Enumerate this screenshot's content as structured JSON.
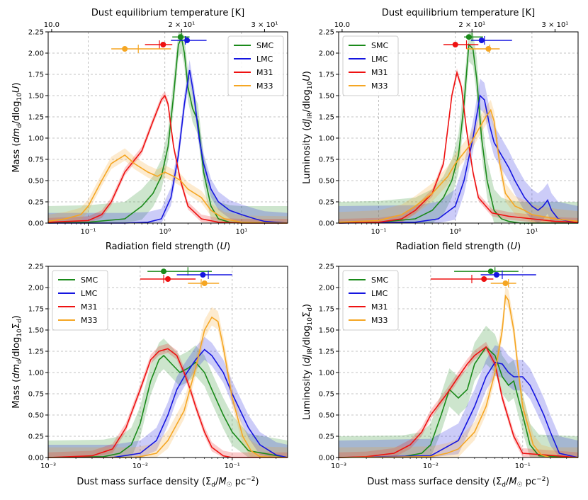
{
  "figure": {
    "colors": {
      "SMC": "#1a8a1a",
      "LMC": "#1515e0",
      "M31": "#ee1111",
      "M33": "#f5a623"
    }
  },
  "chart_data": [
    {
      "id": "panel-u-mass",
      "type": "line",
      "xscale": "log",
      "xlim": [
        0.03,
        40
      ],
      "ylim": [
        0,
        2.25
      ],
      "xlabel": "Radiation field strength (U)",
      "ylabel": "Mass (dm_d/dlog10U)",
      "top_xlabel": "Dust equilibrium temperature [K]",
      "top_ticks": [
        {
          "u": 0.0333,
          "label": "10.0"
        },
        {
          "u": 1.65,
          "label": "2 × 10¹"
        },
        {
          "u": 20.0,
          "label": "3 × 10¹"
        }
      ],
      "x_ticks": [
        {
          "v": 0.1,
          "label": "10⁻¹"
        },
        {
          "v": 1,
          "label": "10⁰"
        },
        {
          "v": 10,
          "label": "10¹"
        }
      ],
      "y_ticks": [
        "0.00",
        "0.25",
        "0.50",
        "0.75",
        "1.00",
        "1.25",
        "1.50",
        "1.75",
        "2.00",
        "2.25"
      ],
      "legend": {
        "loc": "top-right",
        "entries": [
          "SMC",
          "LMC",
          "M31",
          "M33"
        ]
      },
      "series": [
        {
          "name": "SMC",
          "x": [
            0.03,
            0.1,
            0.3,
            0.5,
            0.7,
            0.9,
            1.1,
            1.3,
            1.5,
            1.65,
            1.8,
            2.0,
            2.3,
            2.7,
            3.2,
            4.0,
            5.0,
            7.0,
            10,
            40
          ],
          "y": [
            0,
            0.01,
            0.05,
            0.2,
            0.35,
            0.55,
            0.9,
            1.5,
            2.1,
            2.18,
            2.0,
            1.6,
            1.35,
            1.2,
            0.6,
            0.2,
            0.05,
            0.01,
            0,
            0
          ],
          "band": 0.2,
          "marker": {
            "y": 2.19,
            "point": 1.6,
            "median": 1.65,
            "lo": 1.25,
            "hi": 2.1
          }
        },
        {
          "name": "LMC",
          "x": [
            0.03,
            0.3,
            0.6,
            0.9,
            1.2,
            1.5,
            1.8,
            2.1,
            2.4,
            2.8,
            3.2,
            4.0,
            5.0,
            7.0,
            10,
            15,
            20,
            40
          ],
          "y": [
            0,
            0,
            0.01,
            0.05,
            0.3,
            0.8,
            1.4,
            1.8,
            1.5,
            1.0,
            0.7,
            0.4,
            0.25,
            0.15,
            0.1,
            0.05,
            0.02,
            0
          ],
          "band": 0.12,
          "marker": {
            "y": 2.15,
            "point": 1.95,
            "median": 1.85,
            "lo": 1.2,
            "hi": 3.5
          }
        },
        {
          "name": "M31",
          "x": [
            0.03,
            0.1,
            0.15,
            0.2,
            0.3,
            0.5,
            0.7,
            0.9,
            1.0,
            1.1,
            1.3,
            1.6,
            2.0,
            3.0,
            5.0,
            10,
            40
          ],
          "y": [
            0.01,
            0.03,
            0.1,
            0.25,
            0.6,
            0.85,
            1.2,
            1.45,
            1.5,
            1.4,
            0.9,
            0.5,
            0.2,
            0.05,
            0.01,
            0,
            0
          ],
          "band": 0.05,
          "marker": {
            "y": 2.1,
            "point": 0.95,
            "median": 0.85,
            "lo": 0.55,
            "hi": 1.25
          }
        },
        {
          "name": "M33",
          "x": [
            0.03,
            0.05,
            0.08,
            0.1,
            0.15,
            0.2,
            0.3,
            0.4,
            0.6,
            0.8,
            1.0,
            1.3,
            1.6,
            2.0,
            3.0,
            4.0,
            6.0,
            10,
            40
          ],
          "y": [
            0.02,
            0.05,
            0.1,
            0.2,
            0.5,
            0.7,
            0.8,
            0.7,
            0.6,
            0.55,
            0.6,
            0.55,
            0.5,
            0.4,
            0.3,
            0.15,
            0.05,
            0.01,
            0
          ],
          "band": 0.08,
          "marker": {
            "y": 2.05,
            "point": 0.3,
            "median": 0.45,
            "lo": 0.2,
            "hi": 1.2
          }
        }
      ]
    },
    {
      "id": "panel-u-lum",
      "type": "line",
      "xscale": "log",
      "xlim": [
        0.03,
        40
      ],
      "ylim": [
        0,
        2.25
      ],
      "xlabel": "Radiation field strength (U)",
      "ylabel": "Luminosity (dJ_IR/dlog10U)",
      "top_xlabel": "Dust equilibrium temperature [K]",
      "top_ticks": [
        {
          "u": 0.0333,
          "label": "10.0"
        },
        {
          "u": 1.65,
          "label": "2 × 10¹"
        },
        {
          "u": 20.0,
          "label": "3 × 10¹"
        }
      ],
      "x_ticks": [
        {
          "v": 0.1,
          "label": "10⁻¹"
        },
        {
          "v": 1,
          "label": "10⁰"
        },
        {
          "v": 10,
          "label": "10¹"
        }
      ],
      "y_ticks": [
        "0.00",
        "0.25",
        "0.50",
        "0.75",
        "1.00",
        "1.25",
        "1.50",
        "1.75",
        "2.00",
        "2.25"
      ],
      "legend": {
        "loc": "top-left",
        "entries": [
          "SMC",
          "LMC",
          "M31",
          "M33"
        ]
      },
      "series": [
        {
          "name": "SMC",
          "x": [
            0.03,
            0.1,
            0.3,
            0.5,
            0.7,
            0.9,
            1.1,
            1.3,
            1.5,
            1.7,
            1.9,
            2.2,
            2.6,
            3.2,
            4.0,
            5.0,
            7.0,
            10,
            40
          ],
          "y": [
            0,
            0.01,
            0.05,
            0.15,
            0.3,
            0.5,
            0.8,
            1.4,
            2.1,
            2.05,
            1.7,
            1.0,
            0.5,
            0.15,
            0.05,
            0.02,
            0,
            0,
            0
          ],
          "band": 0.25,
          "marker": {
            "y": 2.19,
            "point": 1.5,
            "median": 1.65,
            "lo": 1.3,
            "hi": 2.3
          }
        },
        {
          "name": "LMC",
          "x": [
            0.03,
            0.3,
            0.6,
            1.0,
            1.3,
            1.7,
            2.1,
            2.4,
            2.8,
            3.2,
            4.0,
            5.0,
            6.0,
            8.0,
            10,
            12,
            14,
            16,
            18,
            22,
            40
          ],
          "y": [
            0,
            0.01,
            0.05,
            0.2,
            0.5,
            1.0,
            1.5,
            1.45,
            1.15,
            0.95,
            0.8,
            0.65,
            0.5,
            0.3,
            0.2,
            0.15,
            0.2,
            0.27,
            0.15,
            0.05,
            0
          ],
          "band": 0.2,
          "marker": {
            "y": 2.15,
            "point": 2.2,
            "median": 2.4,
            "lo": 1.6,
            "hi": 5.5
          }
        },
        {
          "name": "M31",
          "x": [
            0.03,
            0.1,
            0.2,
            0.3,
            0.5,
            0.7,
            0.9,
            1.05,
            1.2,
            1.4,
            1.7,
            2.0,
            2.5,
            3.0,
            5.0,
            10,
            20,
            40
          ],
          "y": [
            0,
            0.01,
            0.05,
            0.15,
            0.35,
            0.7,
            1.5,
            1.77,
            1.6,
            1.1,
            0.6,
            0.3,
            0.2,
            0.12,
            0.08,
            0.05,
            0.02,
            0.01
          ],
          "band": 0.05,
          "marker": {
            "y": 2.1,
            "point": 1.0,
            "median": 1.4,
            "lo": 0.7,
            "hi": 2.0
          }
        },
        {
          "name": "M33",
          "x": [
            0.03,
            0.1,
            0.2,
            0.3,
            0.5,
            0.8,
            1.0,
            1.5,
            2.0,
            2.5,
            2.9,
            3.2,
            3.8,
            4.5,
            6.0,
            8.0,
            10,
            20,
            40
          ],
          "y": [
            0.01,
            0.03,
            0.1,
            0.2,
            0.35,
            0.55,
            0.7,
            0.9,
            1.1,
            1.25,
            1.33,
            1.2,
            0.7,
            0.35,
            0.2,
            0.15,
            0.1,
            0.05,
            0.02
          ],
          "band": 0.12,
          "marker": {
            "y": 2.05,
            "point": 2.7,
            "median": 2.8,
            "lo": 1.4,
            "hi": 3.8
          }
        }
      ]
    },
    {
      "id": "panel-sigma-mass",
      "type": "line",
      "xscale": "log",
      "xlim": [
        0.001,
        0.4
      ],
      "ylim": [
        0,
        2.25
      ],
      "xlabel": "Dust mass surface density (Σd/M☉pc⁻²)",
      "ylabel": "Mass (dm_d/dlog10Σd)",
      "x_ticks": [
        {
          "v": 0.001,
          "label": "10⁻³"
        },
        {
          "v": 0.01,
          "label": "10⁻²"
        },
        {
          "v": 0.1,
          "label": "10⁻¹"
        }
      ],
      "y_ticks": [
        "0.00",
        "0.25",
        "0.50",
        "0.75",
        "1.00",
        "1.25",
        "1.50",
        "1.75",
        "2.00",
        "2.25"
      ],
      "legend": {
        "loc": "top-left",
        "entries": [
          "SMC",
          "LMC",
          "M31",
          "M33"
        ]
      },
      "series": [
        {
          "name": "SMC",
          "x": [
            0.001,
            0.004,
            0.006,
            0.008,
            0.01,
            0.013,
            0.016,
            0.018,
            0.022,
            0.027,
            0.033,
            0.04,
            0.05,
            0.06,
            0.08,
            0.1,
            0.15,
            0.4
          ],
          "y": [
            0,
            0.01,
            0.05,
            0.15,
            0.4,
            0.9,
            1.15,
            1.2,
            1.1,
            1.0,
            1.05,
            1.12,
            1.0,
            0.8,
            0.5,
            0.3,
            0.08,
            0
          ],
          "band": 0.2,
          "marker": {
            "y": 2.19,
            "point": 0.018,
            "median": 0.033,
            "lo": 0.012,
            "hi": 0.06
          }
        },
        {
          "name": "LMC",
          "x": [
            0.001,
            0.005,
            0.01,
            0.015,
            0.02,
            0.025,
            0.03,
            0.04,
            0.05,
            0.06,
            0.08,
            0.1,
            0.15,
            0.2,
            0.3,
            0.4
          ],
          "y": [
            0,
            0,
            0.05,
            0.2,
            0.5,
            0.8,
            0.95,
            1.15,
            1.27,
            1.2,
            1.0,
            0.75,
            0.35,
            0.15,
            0.03,
            0
          ],
          "band": 0.15,
          "marker": {
            "y": 2.15,
            "point": 0.048,
            "median": 0.055,
            "lo": 0.025,
            "hi": 0.1
          }
        },
        {
          "name": "M31",
          "x": [
            0.001,
            0.003,
            0.005,
            0.007,
            0.01,
            0.013,
            0.016,
            0.02,
            0.025,
            0.03,
            0.035,
            0.04,
            0.05,
            0.06,
            0.08,
            0.1,
            0.4
          ],
          "y": [
            0,
            0.02,
            0.1,
            0.35,
            0.8,
            1.15,
            1.25,
            1.28,
            1.2,
            1.0,
            0.8,
            0.6,
            0.3,
            0.12,
            0.02,
            0,
            0
          ],
          "band": 0.06,
          "marker": {
            "y": 2.1,
            "point": 0.02,
            "median": 0.018,
            "lo": 0.01,
            "hi": 0.04
          }
        },
        {
          "name": "M33",
          "x": [
            0.001,
            0.008,
            0.01,
            0.015,
            0.02,
            0.03,
            0.04,
            0.05,
            0.06,
            0.07,
            0.08,
            0.1,
            0.13,
            0.16,
            0.2,
            0.4
          ],
          "y": [
            0,
            0,
            0.01,
            0.05,
            0.2,
            0.55,
            1.05,
            1.5,
            1.65,
            1.6,
            1.3,
            0.7,
            0.25,
            0.08,
            0.01,
            0
          ],
          "band": 0.12,
          "marker": {
            "y": 2.05,
            "point": 0.05,
            "median": 0.046,
            "lo": 0.033,
            "hi": 0.072
          }
        }
      ]
    },
    {
      "id": "panel-sigma-lum",
      "type": "line",
      "xscale": "log",
      "xlim": [
        0.001,
        0.4
      ],
      "ylim": [
        0,
        2.25
      ],
      "xlabel": "Dust mass surface density (Σd/M☉pc⁻²)",
      "ylabel": "Luminosity (dJ_IR/dlog10Σd)",
      "x_ticks": [
        {
          "v": 0.001,
          "label": "10⁻³"
        },
        {
          "v": 0.01,
          "label": "10⁻²"
        },
        {
          "v": 0.1,
          "label": "10⁻¹"
        }
      ],
      "y_ticks": [
        "0.00",
        "0.25",
        "0.50",
        "0.75",
        "1.00",
        "1.25",
        "1.50",
        "1.75",
        "2.00",
        "2.25"
      ],
      "legend": {
        "loc": "top-left",
        "entries": [
          "SMC",
          "LMC",
          "M31",
          "M33"
        ]
      },
      "series": [
        {
          "name": "SMC",
          "x": [
            0.001,
            0.005,
            0.008,
            0.01,
            0.013,
            0.016,
            0.02,
            0.025,
            0.03,
            0.04,
            0.05,
            0.06,
            0.07,
            0.08,
            0.1,
            0.12,
            0.15,
            0.4
          ],
          "y": [
            0,
            0.01,
            0.05,
            0.15,
            0.5,
            0.8,
            0.7,
            0.8,
            1.1,
            1.3,
            1.2,
            0.95,
            0.85,
            0.9,
            0.5,
            0.15,
            0.02,
            0
          ],
          "band": 0.25,
          "marker": {
            "y": 2.19,
            "point": 0.045,
            "median": 0.05,
            "lo": 0.018,
            "hi": 0.09
          }
        },
        {
          "name": "LMC",
          "x": [
            0.001,
            0.01,
            0.02,
            0.03,
            0.04,
            0.05,
            0.06,
            0.07,
            0.08,
            0.1,
            0.12,
            0.14,
            0.17,
            0.2,
            0.25,
            0.4
          ],
          "y": [
            0,
            0.02,
            0.2,
            0.6,
            0.95,
            1.12,
            1.1,
            1.0,
            0.95,
            0.95,
            0.85,
            0.7,
            0.5,
            0.3,
            0.05,
            0
          ],
          "band": 0.2,
          "marker": {
            "y": 2.15,
            "point": 0.052,
            "median": 0.06,
            "lo": 0.035,
            "hi": 0.14
          }
        },
        {
          "name": "M31",
          "x": [
            0.001,
            0.002,
            0.004,
            0.006,
            0.008,
            0.01,
            0.015,
            0.02,
            0.025,
            0.03,
            0.04,
            0.05,
            0.06,
            0.08,
            0.1,
            0.4
          ],
          "y": [
            0,
            0.01,
            0.05,
            0.15,
            0.3,
            0.5,
            0.75,
            0.95,
            1.1,
            1.2,
            1.3,
            1.1,
            0.7,
            0.25,
            0.05,
            0
          ],
          "band": 0.06,
          "marker": {
            "y": 2.1,
            "point": 0.038,
            "median": 0.028,
            "lo": 0.01,
            "hi": 0.048
          }
        },
        {
          "name": "M33",
          "x": [
            0.001,
            0.01,
            0.015,
            0.02,
            0.03,
            0.04,
            0.05,
            0.06,
            0.065,
            0.07,
            0.08,
            0.09,
            0.1,
            0.13,
            0.16,
            0.2,
            0.4
          ],
          "y": [
            0,
            0.01,
            0.05,
            0.1,
            0.3,
            0.6,
            1.0,
            1.5,
            1.9,
            1.85,
            1.5,
            1.0,
            0.6,
            0.15,
            0.03,
            0,
            0
          ],
          "band": 0.12,
          "marker": {
            "y": 2.05,
            "point": 0.065,
            "median": 0.07,
            "lo": 0.045,
            "hi": 0.085
          }
        }
      ]
    }
  ]
}
